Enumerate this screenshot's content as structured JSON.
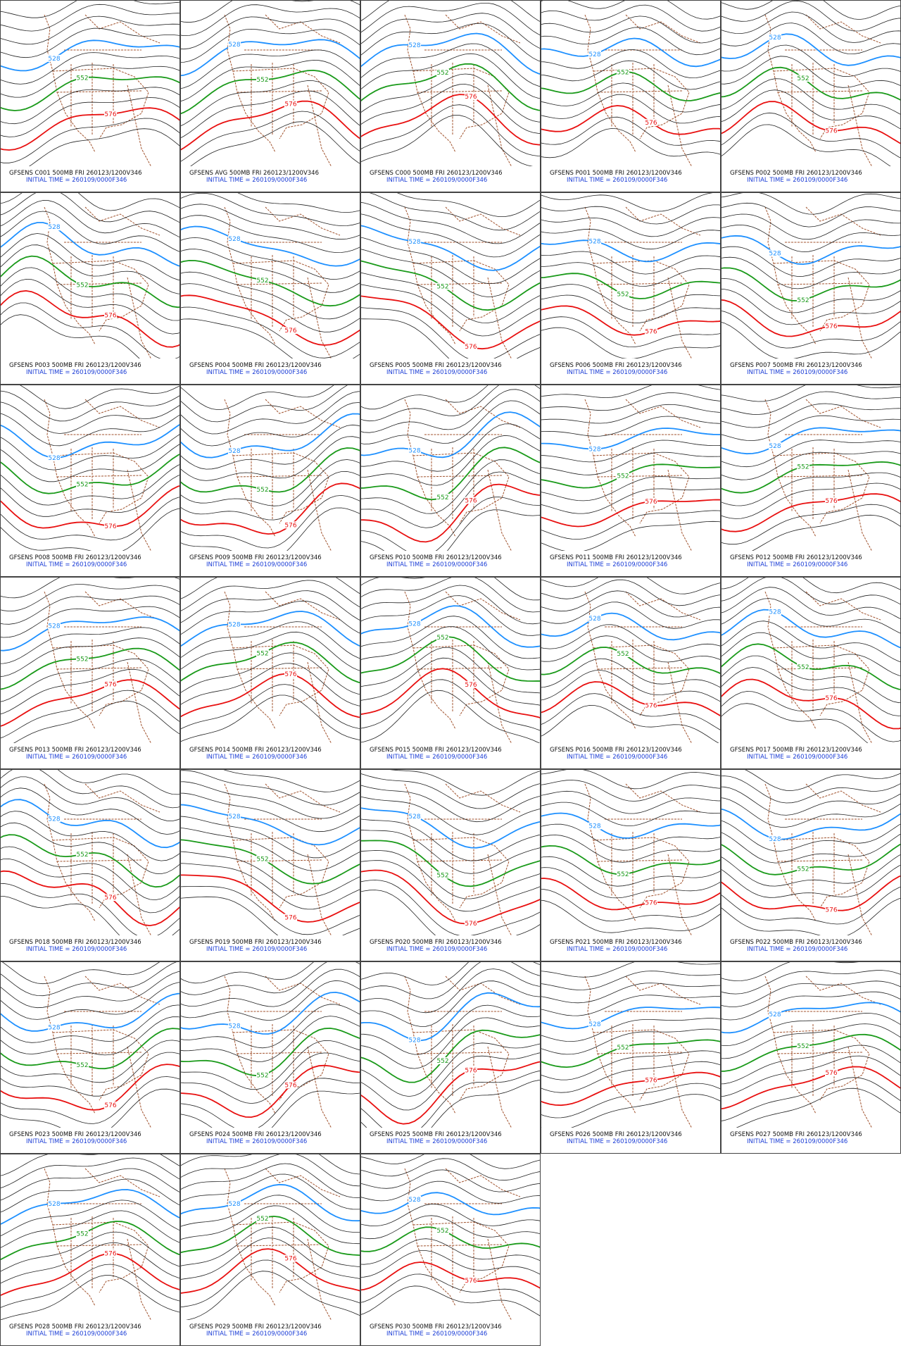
{
  "panels": [
    {
      "title": "GFSENS C001 500MB FRI 260123/1200V346",
      "subtitle": "INITIAL TIME = 260109/0000F346",
      "labels": [
        "528",
        "552",
        "576"
      ]
    },
    {
      "title": "GFSENS AVG 500MB FRI 260123/1200V346",
      "subtitle": "INITIAL TIME = 260109/0000F346",
      "labels": [
        "528",
        "552",
        "576"
      ]
    },
    {
      "title": "GFSENS C000 500MB FRI 260123/1200V346",
      "subtitle": "INITIAL TIME = 260109/0000F346",
      "labels": [
        "528",
        "552",
        "576"
      ]
    },
    {
      "title": "GFSENS P001 500MB FRI 260123/1200V346",
      "subtitle": "INITIAL TIME = 260109/0000F346",
      "labels": [
        "528",
        "552",
        "576"
      ]
    },
    {
      "title": "GFSENS P002 500MB FRI 260123/1200V346",
      "subtitle": "INITIAL TIME = 260109/0000F346",
      "labels": [
        "528",
        "552",
        "576"
      ]
    },
    {
      "title": "GFSENS P003 500MB FRI 260123/1200V346",
      "subtitle": "INITIAL TIME = 260109/0000F346",
      "labels": [
        "528",
        "552",
        "576"
      ]
    },
    {
      "title": "GFSENS P004 500MB FRI 260123/1200V346",
      "subtitle": "INITIAL TIME = 260109/0000F346",
      "labels": [
        "528",
        "552",
        "576"
      ]
    },
    {
      "title": "GFSENS P005 500MB FRI 260123/1200V346",
      "subtitle": "INITIAL TIME = 260109/0000F346",
      "labels": [
        "528",
        "552",
        "576"
      ]
    },
    {
      "title": "GFSENS P006 500MB FRI 260123/1200V346",
      "subtitle": "INITIAL TIME = 260109/0000F346",
      "labels": [
        "528",
        "552",
        "576"
      ]
    },
    {
      "title": "GFSENS P007 500MB FRI 260123/1200V346",
      "subtitle": "INITIAL TIME = 260109/0000F346",
      "labels": [
        "528",
        "552",
        "576"
      ]
    },
    {
      "title": "GFSENS P008 500MB FRI 260123/1200V346",
      "subtitle": "INITIAL TIME = 260109/0000F346",
      "labels": [
        "528",
        "552",
        "576"
      ]
    },
    {
      "title": "GFSENS P009 500MB FRI 260123/1200V346",
      "subtitle": "INITIAL TIME = 260109/0000F346",
      "labels": [
        "528",
        "552",
        "576"
      ]
    },
    {
      "title": "GFSENS P010 500MB FRI 260123/1200V346",
      "subtitle": "INITIAL TIME = 260109/0000F346",
      "labels": [
        "528",
        "552",
        "576"
      ]
    },
    {
      "title": "GFSENS P011 500MB FRI 260123/1200V346",
      "subtitle": "INITIAL TIME = 260109/0000F346",
      "labels": [
        "528",
        "552",
        "576"
      ]
    },
    {
      "title": "GFSENS P012 500MB FRI 260123/1200V346",
      "subtitle": "INITIAL TIME = 260109/0000F346",
      "labels": [
        "528",
        "552",
        "576"
      ]
    },
    {
      "title": "GFSENS P013 500MB FRI 260123/1200V346",
      "subtitle": "INITIAL TIME = 260109/0000F346",
      "labels": [
        "528",
        "552",
        "576"
      ]
    },
    {
      "title": "GFSENS P014 500MB FRI 260123/1200V346",
      "subtitle": "INITIAL TIME = 260109/0000F346",
      "labels": [
        "528",
        "552",
        "576"
      ]
    },
    {
      "title": "GFSENS P015 500MB FRI 260123/1200V346",
      "subtitle": "INITIAL TIME = 260109/0000F346",
      "labels": [
        "528",
        "552",
        "576"
      ]
    },
    {
      "title": "GFSENS P016 500MB FRI 260123/1200V346",
      "subtitle": "INITIAL TIME = 260109/0000F346",
      "labels": [
        "528",
        "552",
        "576"
      ]
    },
    {
      "title": "GFSENS P017 500MB FRI 260123/1200V346",
      "subtitle": "INITIAL TIME = 260109/0000F346",
      "labels": [
        "528",
        "552",
        "576"
      ]
    },
    {
      "title": "GFSENS P018 500MB FRI 260123/1200V346",
      "subtitle": "INITIAL TIME = 260109/0000F346",
      "labels": [
        "528",
        "552",
        "576"
      ]
    },
    {
      "title": "GFSENS P019 500MB FRI 260123/1200V346",
      "subtitle": "INITIAL TIME = 260109/0000F346",
      "labels": [
        "528",
        "552",
        "576"
      ]
    },
    {
      "title": "GFSENS P020 500MB FRI 260123/1200V346",
      "subtitle": "INITIAL TIME = 260109/0000F346",
      "labels": [
        "528",
        "552",
        "576"
      ]
    },
    {
      "title": "GFSENS P021 500MB FRI 260123/1200V346",
      "subtitle": "INITIAL TIME = 260109/0000F346",
      "labels": [
        "528",
        "552",
        "576"
      ]
    },
    {
      "title": "GFSENS P022 500MB FRI 260123/1200V346",
      "subtitle": "INITIAL TIME = 260109/0000F346",
      "labels": [
        "528",
        "552",
        "576"
      ]
    },
    {
      "title": "GFSENS P023 500MB FRI 260123/1200V346",
      "subtitle": "INITIAL TIME = 260109/0000F346",
      "labels": [
        "528",
        "552",
        "576"
      ]
    },
    {
      "title": "GFSENS P024 500MB FRI 260123/1200V346",
      "subtitle": "INITIAL TIME = 260109/0000F346",
      "labels": [
        "528",
        "552",
        "576"
      ]
    },
    {
      "title": "GFSENS P025 500MB FRI 260123/1200V346",
      "subtitle": "INITIAL TIME = 260109/0000F346",
      "labels": [
        "528",
        "552",
        "576"
      ]
    },
    {
      "title": "GFSENS P026 500MB FRI 260123/1200V346",
      "subtitle": "INITIAL TIME = 260109/0000F346",
      "labels": [
        "528",
        "552",
        "576"
      ]
    },
    {
      "title": "GFSENS P027 500MB FRI 260123/1200V346",
      "subtitle": "INITIAL TIME = 260109/0000F346",
      "labels": [
        "528",
        "552",
        "576"
      ]
    },
    {
      "title": "GFSENS P028 500MB FRI 260123/1200V346",
      "subtitle": "INITIAL TIME = 260109/0000F346",
      "labels": [
        "528",
        "552",
        "576"
      ]
    },
    {
      "title": "GFSENS P029 500MB FRI 260123/1200V346",
      "subtitle": "INITIAL TIME = 260109/0000F346",
      "labels": [
        "528",
        "552",
        "576"
      ]
    },
    {
      "title": "GFSENS P030 500MB FRI 260123/1200V346",
      "subtitle": "INITIAL TIME = 260109/0000F346",
      "labels": [
        "528",
        "552",
        "576"
      ]
    }
  ]
}
